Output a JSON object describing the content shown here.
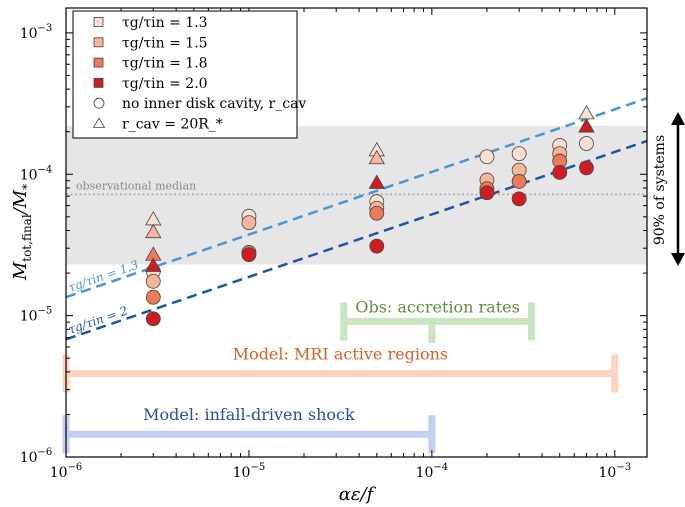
{
  "chart_data": {
    "type": "scatter",
    "title": "",
    "xlabel": "αε/f",
    "ylabel": "M_tot,final / M_*",
    "xscale": "log",
    "yscale": "log",
    "xlim": [
      1e-06,
      0.0015
    ],
    "ylim": [
      1e-06,
      0.0015
    ],
    "x_ticks": [
      {
        "value": 1e-06,
        "base": "10",
        "exp": "−6"
      },
      {
        "value": 1e-05,
        "base": "10",
        "exp": "−5"
      },
      {
        "value": 0.0001,
        "base": "10",
        "exp": "−4"
      },
      {
        "value": 0.001,
        "base": "10",
        "exp": "−3"
      }
    ],
    "y_ticks": [
      {
        "value": 1e-06,
        "base": "10",
        "exp": "−6"
      },
      {
        "value": 1e-05,
        "base": "10",
        "exp": "−5"
      },
      {
        "value": 0.0001,
        "base": "10",
        "exp": "−4"
      },
      {
        "value": 0.001,
        "base": "10",
        "exp": "−3"
      }
    ],
    "series": [
      {
        "name": "τg/τin = 1.3",
        "color": "#fbe0d2",
        "marker": "circle",
        "points": [
          [
            3e-06,
            2.05e-05
          ],
          [
            1e-05,
            5.05e-05
          ],
          [
            5e-05,
            6.4e-05
          ],
          [
            0.0002,
            0.000133
          ],
          [
            0.0003,
            0.00014
          ],
          [
            0.0005,
            0.00016
          ],
          [
            0.0007,
            0.000165
          ]
        ]
      },
      {
        "name": "τg/τin = 1.5",
        "color": "#f8b59a",
        "marker": "circle",
        "points": [
          [
            3e-06,
            1.75e-05
          ],
          [
            1e-05,
            4.55e-05
          ],
          [
            5e-05,
            5.75e-05
          ],
          [
            0.0002,
            9.1e-05
          ],
          [
            0.0003,
            0.000107
          ],
          [
            0.0005,
            0.00014
          ]
        ]
      },
      {
        "name": "τg/τin = 1.8",
        "color": "#ef7a5a",
        "marker": "circle",
        "points": [
          [
            3e-06,
            1.35e-05
          ],
          [
            1e-05,
            2.8e-05
          ],
          [
            5e-05,
            5.3e-05
          ],
          [
            0.0002,
            7.9e-05
          ],
          [
            0.0003,
            8.9e-05
          ],
          [
            0.0005,
            0.000124
          ]
        ]
      },
      {
        "name": "τg/τin = 2.0",
        "color": "#cf1d22",
        "marker": "circle",
        "points": [
          [
            3e-06,
            9.5e-06
          ],
          [
            1e-05,
            2.7e-05
          ],
          [
            5e-05,
            3.1e-05
          ],
          [
            0.0002,
            7.4e-05
          ],
          [
            0.0003,
            6.7e-05
          ],
          [
            0.0005,
            0.000103
          ],
          [
            0.0007,
            0.000111
          ]
        ]
      },
      {
        "name": "no inner disk cavity, r_cav",
        "color": "#ffffff",
        "marker": "circle",
        "points": []
      },
      {
        "name": "r_cav = 20R_*",
        "color": "#ffffff",
        "marker": "triangle",
        "points": [
          [
            3e-06,
            4.8e-05,
            "#fbe0d2"
          ],
          [
            3e-06,
            3.9e-05,
            "#f8b59a"
          ],
          [
            3e-06,
            2.7e-05,
            "#ef7a5a"
          ],
          [
            3e-06,
            2.25e-05,
            "#cf1d22"
          ],
          [
            5e-05,
            0.000148,
            "#fbe0d2"
          ],
          [
            5e-05,
            0.00013,
            "#f8b59a"
          ],
          [
            5e-05,
            8.7e-05,
            "#cf1d22"
          ],
          [
            0.0007,
            0.00027,
            "#fbe0d2"
          ],
          [
            0.0007,
            0.000218,
            "#cf1d22"
          ]
        ]
      }
    ],
    "trend_lines": [
      {
        "label": "τg/τin = 1.3",
        "color": "#4a96cf",
        "x": [
          1e-06,
          0.0015
        ],
        "y": [
          1.35e-05,
          0.000345
        ]
      },
      {
        "label": "τg/τin = 2",
        "color": "#1b56a3",
        "x": [
          1e-06,
          0.0015
        ],
        "y": [
          6.8e-06,
          0.000172
        ]
      }
    ],
    "observed_band": {
      "y": [
        2.3e-05,
        0.00022
      ],
      "color": "#e6e6e6"
    },
    "observational_median": {
      "label": "observational median",
      "y": 7.2e-05,
      "color": "#a8a8a8"
    },
    "side_annotation": "90% of systems",
    "ranges": [
      {
        "label": "Obs: accretion rates",
        "color": "#c9e4c0",
        "text_color": "#5d8d3a",
        "x": [
          3.3e-05,
          0.00035
        ],
        "y": 9.1e-06,
        "stem_x": 0.0001,
        "stem_y_end": 6.4e-06
      },
      {
        "label": "Model: MRI active regions",
        "color": "#fbd5c1",
        "text_color": "#d65f25",
        "x": [
          1e-06,
          0.001
        ],
        "y": 3.9e-06
      },
      {
        "label": "Model: infall-driven shock",
        "color": "#c2d1ef",
        "text_color": "#2c4e97",
        "x": [
          1e-06,
          0.0001
        ],
        "y": 1.45e-06
      }
    ],
    "legend": {
      "placement": "top-left",
      "entries": [
        {
          "label": "τg/τin = 1.3",
          "marker": "square",
          "color": "#fbe0d2"
        },
        {
          "label": "τg/τin = 1.5",
          "marker": "square",
          "color": "#f8b59a"
        },
        {
          "label": "τg/τin = 1.8",
          "marker": "square",
          "color": "#ef7a5a"
        },
        {
          "label": "τg/τin = 2.0",
          "marker": "square",
          "color": "#cf1d22"
        },
        {
          "label": "no inner disk cavity, r_cav",
          "marker": "circle",
          "color": "#ffffff"
        },
        {
          "label": "r_cav = 20R_*",
          "marker": "triangle",
          "color": "#ffffff"
        }
      ]
    }
  }
}
